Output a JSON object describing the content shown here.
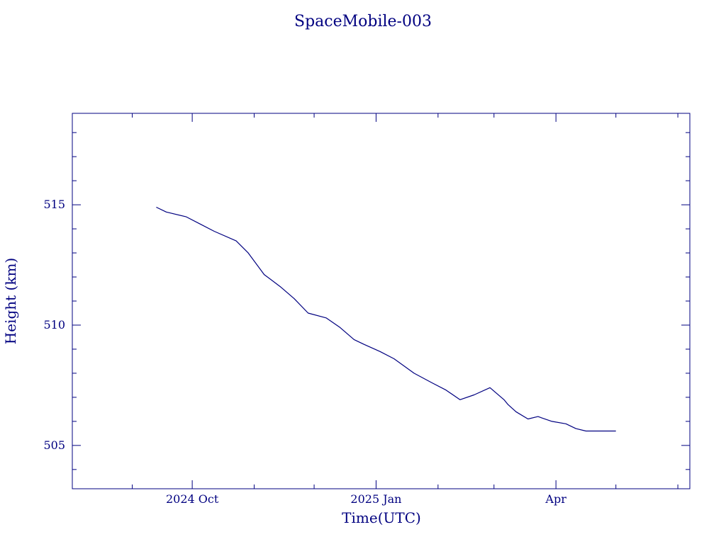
{
  "chart_data": {
    "type": "line",
    "title": "SpaceMobile-003",
    "xlabel": "Time(UTC)",
    "ylabel": "Height (km)",
    "color": "#000080",
    "grid": false,
    "xlim": [
      "2024-08-02",
      "2025-06-07"
    ],
    "ylim": [
      503.2,
      518.8
    ],
    "y_ticks": [
      {
        "value": 505,
        "label": "505"
      },
      {
        "value": 510,
        "label": "510"
      },
      {
        "value": 515,
        "label": "515"
      }
    ],
    "x_ticks": [
      {
        "value": "2024-10-01",
        "label": "2024 Oct"
      },
      {
        "value": "2025-01-01",
        "label": "2025 Jan"
      },
      {
        "value": "2025-04-01",
        "label": "Apr"
      }
    ],
    "x_minor_ticks": [
      "2024-08-01",
      "2024-09-01",
      "2024-11-01",
      "2024-12-01",
      "2025-02-01",
      "2025-03-01",
      "2025-05-01",
      "2025-06-01"
    ],
    "series": [
      {
        "x": [
          "2024-09-13",
          "2024-09-18",
          "2024-09-28",
          "2024-10-05",
          "2024-10-12",
          "2024-10-23",
          "2024-10-29",
          "2024-11-06",
          "2024-11-14",
          "2024-11-21",
          "2024-11-28",
          "2024-12-07",
          "2024-12-14",
          "2024-12-21",
          "2024-12-26",
          "2025-01-03",
          "2025-01-10",
          "2025-01-20",
          "2025-01-29",
          "2025-02-05",
          "2025-02-12",
          "2025-02-19",
          "2025-02-27",
          "2025-03-06",
          "2025-03-08",
          "2025-03-12",
          "2025-03-18",
          "2025-03-23",
          "2025-03-30",
          "2025-04-06",
          "2025-04-11",
          "2025-04-16",
          "2025-04-21",
          "2025-04-25",
          "2025-05-01"
        ],
        "y": [
          514.9,
          514.7,
          514.5,
          514.2,
          513.9,
          513.5,
          513.0,
          512.1,
          511.6,
          511.1,
          510.5,
          510.3,
          509.9,
          509.4,
          509.2,
          508.9,
          508.6,
          508.0,
          507.6,
          507.3,
          506.9,
          507.1,
          507.4,
          506.9,
          506.7,
          506.4,
          506.1,
          506.2,
          506.0,
          505.9,
          505.7,
          505.6,
          505.6,
          505.6,
          505.6
        ]
      }
    ]
  }
}
